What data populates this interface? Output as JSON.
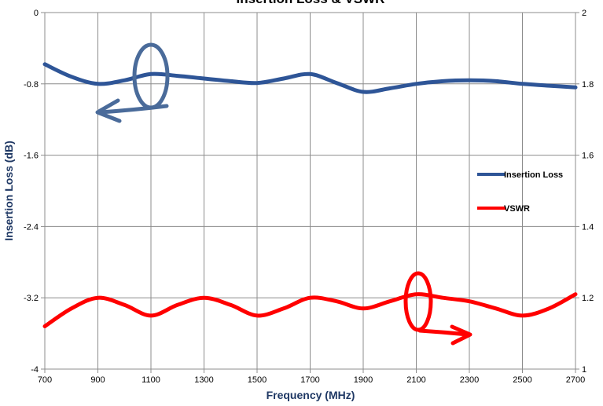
{
  "chart_data": {
    "type": "line",
    "title": "Insertion Loss & VSWR",
    "xlabel": "Frequency (MHz)",
    "ylabel_left": "Insertion Loss (dB)",
    "ylabel_right": "",
    "xlim": [
      700,
      2700
    ],
    "ylim_left": [
      -4,
      0
    ],
    "ylim_right": [
      1,
      2
    ],
    "x_ticks": [
      "700",
      "900",
      "1100",
      "1300",
      "1500",
      "1700",
      "1900",
      "2100",
      "2300",
      "2500",
      "2700"
    ],
    "y_left_ticks": [
      "0",
      "-0.8",
      "-1.6",
      "-2.4",
      "-3.2",
      "-4"
    ],
    "y_right_ticks": [
      "2",
      "1.8",
      "1.6",
      "1.4",
      "1.2",
      "1"
    ],
    "grid": true,
    "legend_position": "right",
    "series": [
      {
        "name": "Insertion Loss",
        "axis": "left",
        "color": "#2e5597",
        "x": [
          700,
          800,
          900,
          1000,
          1100,
          1200,
          1300,
          1400,
          1500,
          1600,
          1700,
          1800,
          1900,
          2000,
          2100,
          2200,
          2300,
          2400,
          2500,
          2600,
          2700
        ],
        "y": [
          -0.58,
          -0.72,
          -0.8,
          -0.76,
          -0.69,
          -0.71,
          -0.74,
          -0.77,
          -0.79,
          -0.74,
          -0.69,
          -0.79,
          -0.89,
          -0.85,
          -0.8,
          -0.77,
          -0.76,
          -0.77,
          -0.8,
          -0.82,
          -0.84
        ]
      },
      {
        "name": "VSWR",
        "axis": "right",
        "color": "#ff0000",
        "x": [
          700,
          800,
          900,
          1000,
          1100,
          1200,
          1300,
          1400,
          1500,
          1600,
          1700,
          1800,
          1900,
          2000,
          2100,
          2200,
          2300,
          2400,
          2500,
          2600,
          2700
        ],
        "y": [
          1.12,
          1.17,
          1.2,
          1.18,
          1.15,
          1.18,
          1.2,
          1.18,
          1.15,
          1.17,
          1.2,
          1.19,
          1.17,
          1.19,
          1.21,
          1.2,
          1.19,
          1.17,
          1.15,
          1.17,
          1.21
        ]
      }
    ],
    "annotations": [
      {
        "type": "circle-with-arrow",
        "series": "Insertion Loss",
        "direction": "left-axis",
        "color": "#4a6b9a"
      },
      {
        "type": "circle-with-arrow",
        "series": "VSWR",
        "direction": "right-axis",
        "color": "#ff0000"
      }
    ]
  }
}
